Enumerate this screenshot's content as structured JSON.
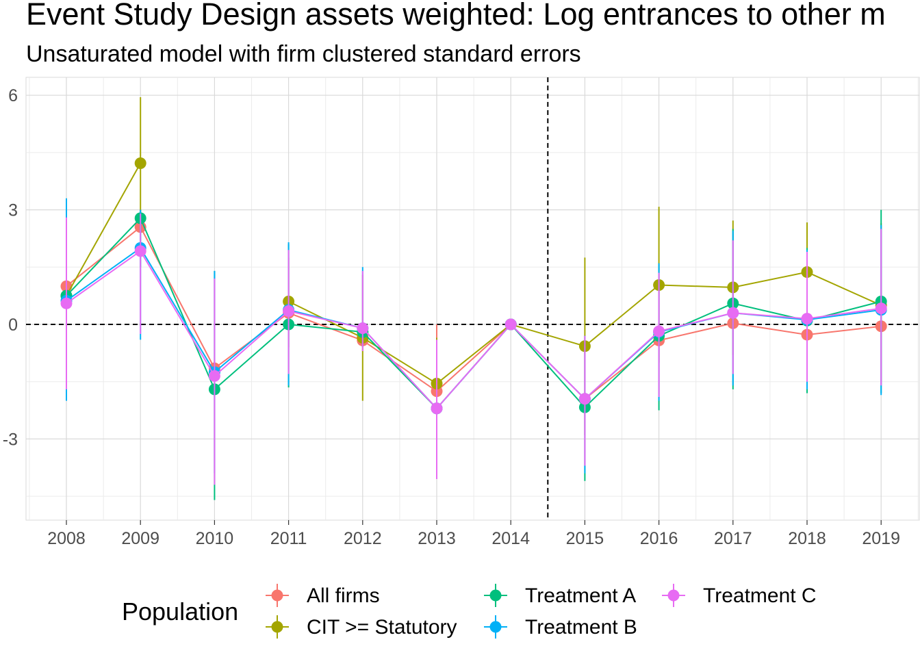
{
  "chart_data": {
    "type": "line",
    "title": "Event Study Design assets weighted: Log entrances to other m",
    "subtitle": "Unsaturated model with firm clustered standard errors",
    "xlabel": "",
    "ylabel": "",
    "categories": [
      "2008",
      "2009",
      "2010",
      "2011",
      "2012",
      "2013",
      "2014",
      "2015",
      "2016",
      "2017",
      "2018",
      "2019"
    ],
    "yticks": [
      -3,
      0,
      3,
      6
    ],
    "ytick_labels": [
      "-3",
      "0",
      "3",
      "6"
    ],
    "ylim": [
      -5.2,
      6.5
    ],
    "reference_lines": {
      "horizontal": 0,
      "vertical_between": [
        "2014",
        "2015"
      ]
    },
    "grid": true,
    "legend": {
      "title": "Population",
      "position": "bottom"
    },
    "series": [
      {
        "name": "All firms",
        "color": "#F8766D",
        "values": [
          1.0,
          2.55,
          -1.15,
          0.3,
          -0.42,
          -1.75,
          0.0,
          -1.95,
          -0.42,
          0.03,
          -0.27,
          -0.05
        ],
        "lower": [
          null,
          null,
          null,
          null,
          null,
          -3.7,
          null,
          null,
          null,
          null,
          null,
          null
        ],
        "upper": [
          null,
          null,
          null,
          null,
          null,
          0.0,
          null,
          null,
          null,
          null,
          null,
          null
        ]
      },
      {
        "name": "CIT >= Statutory",
        "color": "#A3A500",
        "values": [
          0.75,
          4.22,
          null,
          0.6,
          -0.35,
          -1.55,
          0.0,
          -0.57,
          1.03,
          0.97,
          1.37,
          0.5
        ],
        "lower": [
          -0.6,
          2.5,
          null,
          -0.6,
          -2.0,
          -2.7,
          null,
          -2.9,
          -1.0,
          -0.8,
          -0.3,
          -1.5
        ],
        "upper": [
          2.1,
          5.95,
          null,
          1.75,
          1.3,
          -0.35,
          null,
          1.75,
          3.08,
          2.72,
          2.67,
          2.65
        ]
      },
      {
        "name": "Treatment A",
        "color": "#00BF7D",
        "values": [
          0.75,
          2.78,
          -1.7,
          0.0,
          -0.2,
          -2.2,
          0.0,
          -2.17,
          -0.3,
          0.55,
          0.1,
          0.6
        ],
        "lower": [
          -1.9,
          1.5,
          -4.6,
          -1.65,
          null,
          null,
          null,
          -4.1,
          -2.25,
          -1.7,
          -1.8,
          -1.8
        ],
        "upper": [
          3.3,
          3.0,
          1.4,
          2.1,
          null,
          null,
          null,
          -0.3,
          1.6,
          2.5,
          2.0,
          3.0
        ]
      },
      {
        "name": "Treatment B",
        "color": "#00B0F6",
        "values": [
          0.62,
          2.0,
          -1.25,
          0.38,
          -0.1,
          -2.2,
          0.0,
          -1.95,
          -0.2,
          0.3,
          0.12,
          0.38
        ],
        "lower": [
          -2.0,
          -0.4,
          -3.9,
          -1.6,
          -0.6,
          null,
          null,
          -3.9,
          -2.0,
          -1.6,
          -1.7,
          -1.85
        ],
        "upper": [
          3.3,
          3.0,
          1.4,
          2.15,
          1.5,
          null,
          null,
          -0.3,
          1.6,
          2.45,
          1.95,
          2.6
        ]
      },
      {
        "name": "Treatment C",
        "color": "#E76BF3",
        "values": [
          0.55,
          1.92,
          -1.35,
          0.35,
          -0.1,
          -2.2,
          0.0,
          -1.95,
          -0.18,
          0.3,
          0.15,
          0.42
        ],
        "lower": [
          -1.7,
          -0.25,
          -4.2,
          -1.3,
          -0.7,
          -4.05,
          null,
          -3.7,
          -1.9,
          -1.3,
          -1.5,
          -1.6
        ],
        "upper": [
          2.8,
          2.9,
          1.2,
          1.95,
          1.4,
          -0.4,
          null,
          -0.3,
          1.35,
          2.2,
          1.9,
          2.5
        ]
      }
    ]
  }
}
